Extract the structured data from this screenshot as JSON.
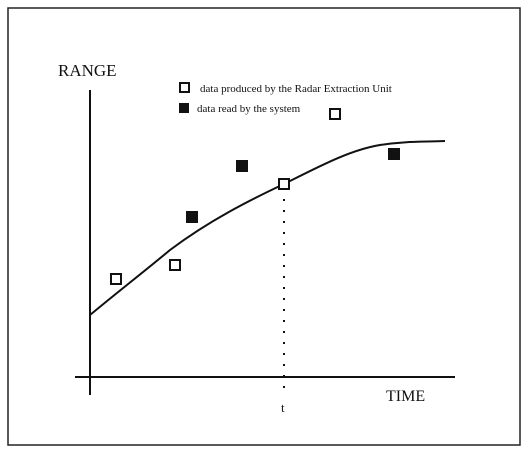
{
  "axes": {
    "y_label": "RANGE",
    "x_label": "TIME",
    "t_label": "t"
  },
  "legend": {
    "produced": "data produced by the Radar Extraction Unit",
    "read": "data read by the system"
  }
}
